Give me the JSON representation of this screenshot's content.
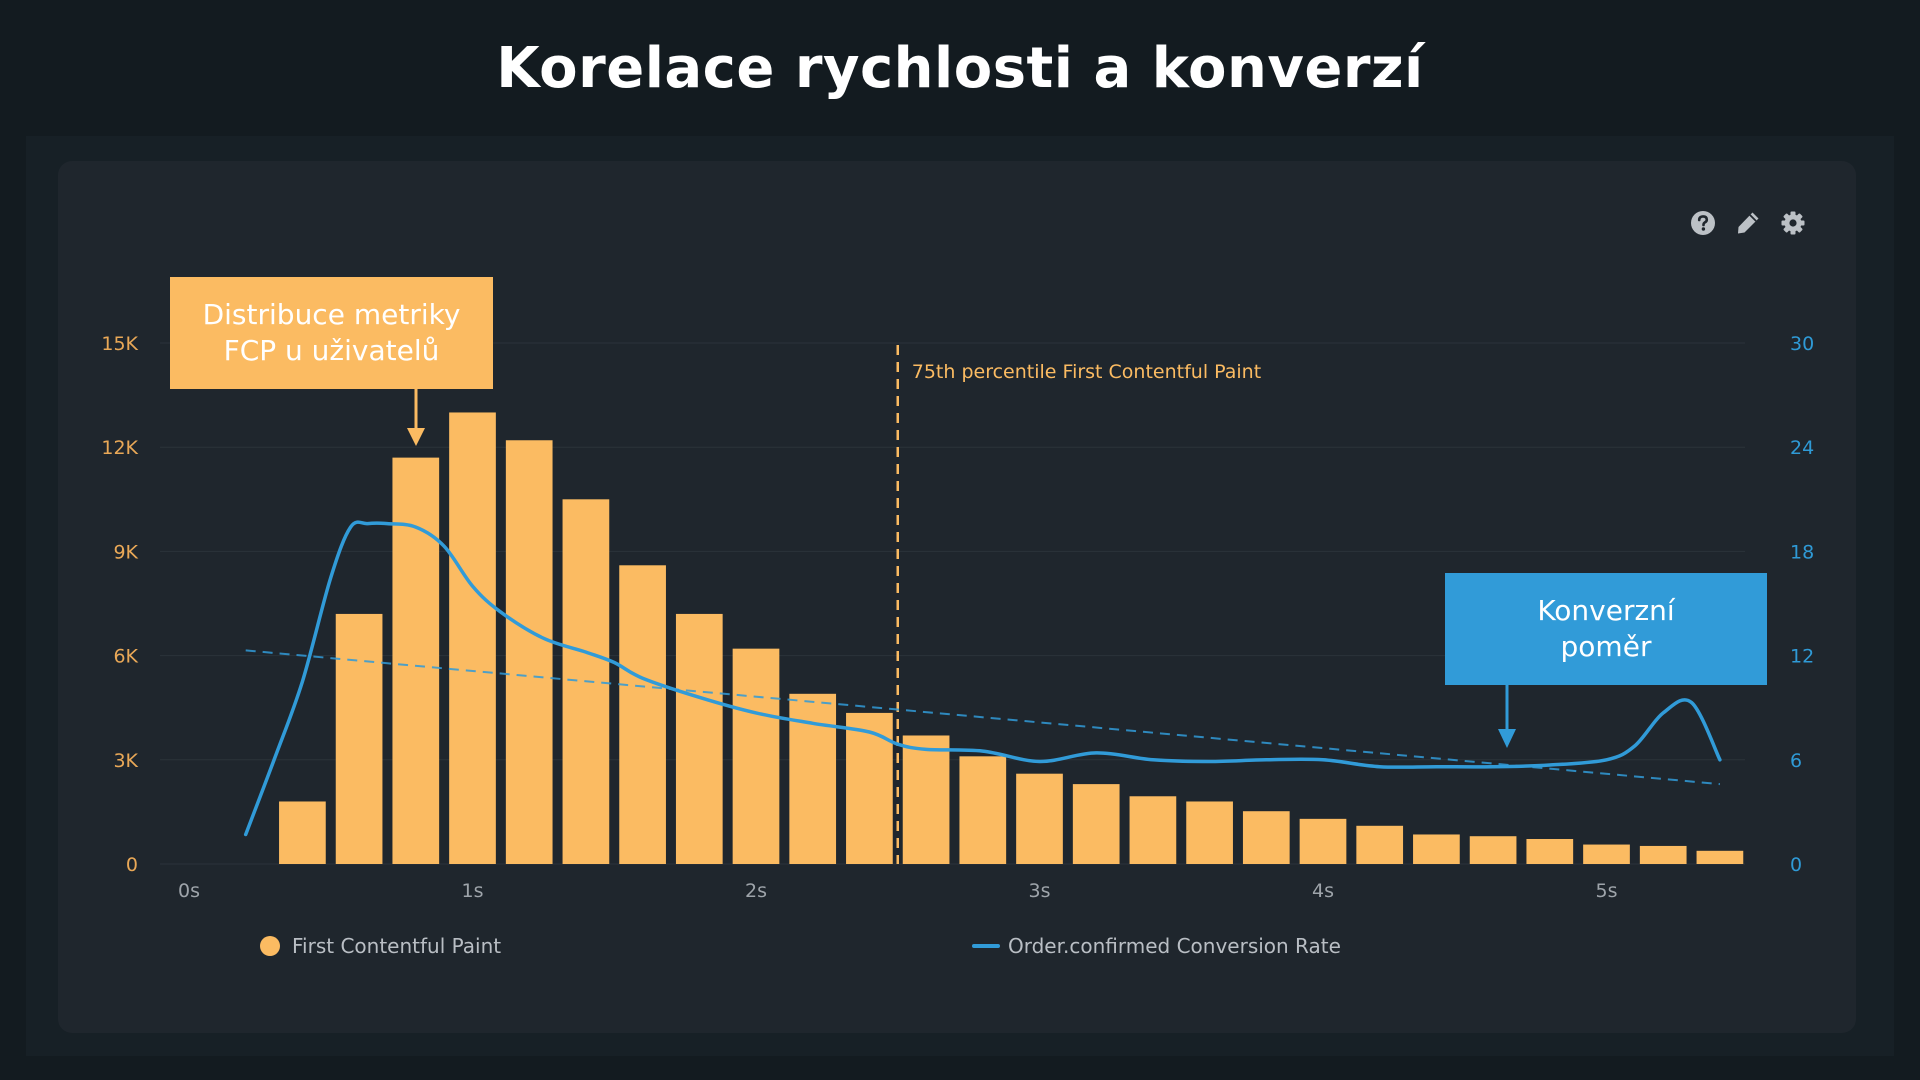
{
  "page": {
    "title": "Korelace rychlosti a konverzí"
  },
  "toolbar": {
    "icons": [
      "help-icon",
      "edit-icon",
      "settings-icon"
    ]
  },
  "annotations": {
    "fcp_distribution": "Distribuce metriky\nFCP u uživatelů",
    "conversion_rate": "Konverzní\npoměr"
  },
  "legend": {
    "bars_label": "First Contentful Paint",
    "line_label": "Order.confirmed Conversion Rate"
  },
  "colors": {
    "bars": "#fbbb62",
    "line": "#319bd8",
    "left_axis": "#e9a857",
    "right_axis": "#2f9ad6",
    "background": "#131b20",
    "card": "#1f262d"
  },
  "chart_data": {
    "type": "bar",
    "x_ticks": [
      "0s",
      "1s",
      "2s",
      "3s",
      "4s",
      "5s"
    ],
    "x_range": [
      0,
      5.7
    ],
    "bar_width_s": 0.2,
    "y_left": {
      "range": [
        0,
        15000
      ],
      "ticks": [
        0,
        3000,
        6000,
        9000,
        12000,
        15000
      ],
      "tick_labels": [
        "0",
        "3K",
        "6K",
        "9K",
        "12K",
        "15K"
      ]
    },
    "y_right": {
      "range": [
        0,
        30
      ],
      "ticks": [
        0,
        6,
        12,
        18,
        24,
        30
      ],
      "tick_labels": [
        "0",
        "6",
        "12",
        "18",
        "24",
        "30"
      ]
    },
    "series": [
      {
        "name": "First Contentful Paint",
        "type": "bar",
        "axis": "left",
        "x": [
          0.4,
          0.6,
          0.8,
          1.0,
          1.2,
          1.4,
          1.6,
          1.8,
          2.0,
          2.2,
          2.4,
          2.6,
          2.8,
          3.0,
          3.2,
          3.4,
          3.6,
          3.8,
          4.0,
          4.2,
          4.4,
          4.6,
          4.8,
          5.0,
          5.2,
          5.4
        ],
        "values": [
          1800,
          7200,
          11700,
          13000,
          12200,
          10500,
          8600,
          7200,
          6200,
          4900,
          4350,
          3700,
          3100,
          2600,
          2300,
          1950,
          1800,
          1520,
          1300,
          1100,
          850,
          800,
          720,
          560,
          520,
          380
        ]
      },
      {
        "name": "Order.confirmed Conversion Rate",
        "type": "line",
        "axis": "right",
        "x": [
          0.2,
          0.3,
          0.4,
          0.5,
          0.57,
          0.63,
          0.7,
          0.8,
          0.9,
          1.0,
          1.1,
          1.25,
          1.4,
          1.5,
          1.6,
          1.8,
          2.0,
          2.2,
          2.4,
          2.5,
          2.6,
          2.8,
          3.0,
          3.2,
          3.4,
          3.6,
          3.8,
          4.0,
          4.2,
          4.4,
          4.6,
          4.8,
          5.0,
          5.1,
          5.2,
          5.3,
          5.4
        ],
        "values": [
          1.7,
          6,
          10.5,
          16.5,
          19.4,
          19.6,
          19.6,
          19.4,
          18.3,
          16,
          14.5,
          13,
          12.2,
          11.6,
          10.7,
          9.6,
          8.7,
          8.1,
          7.6,
          6.9,
          6.6,
          6.5,
          5.9,
          6.4,
          6.0,
          5.9,
          6.0,
          6.0,
          5.6,
          5.6,
          5.6,
          5.7,
          6.0,
          6.8,
          8.7,
          9.3,
          6.0
        ]
      },
      {
        "type": "trend",
        "axis": "right",
        "x": [
          0.2,
          5.4
        ],
        "values": [
          12.3,
          4.6
        ]
      }
    ],
    "reference_line": {
      "x": 2.5,
      "label": "75th percentile First Contentful Paint"
    },
    "grid": true,
    "legend_position": "bottom"
  }
}
